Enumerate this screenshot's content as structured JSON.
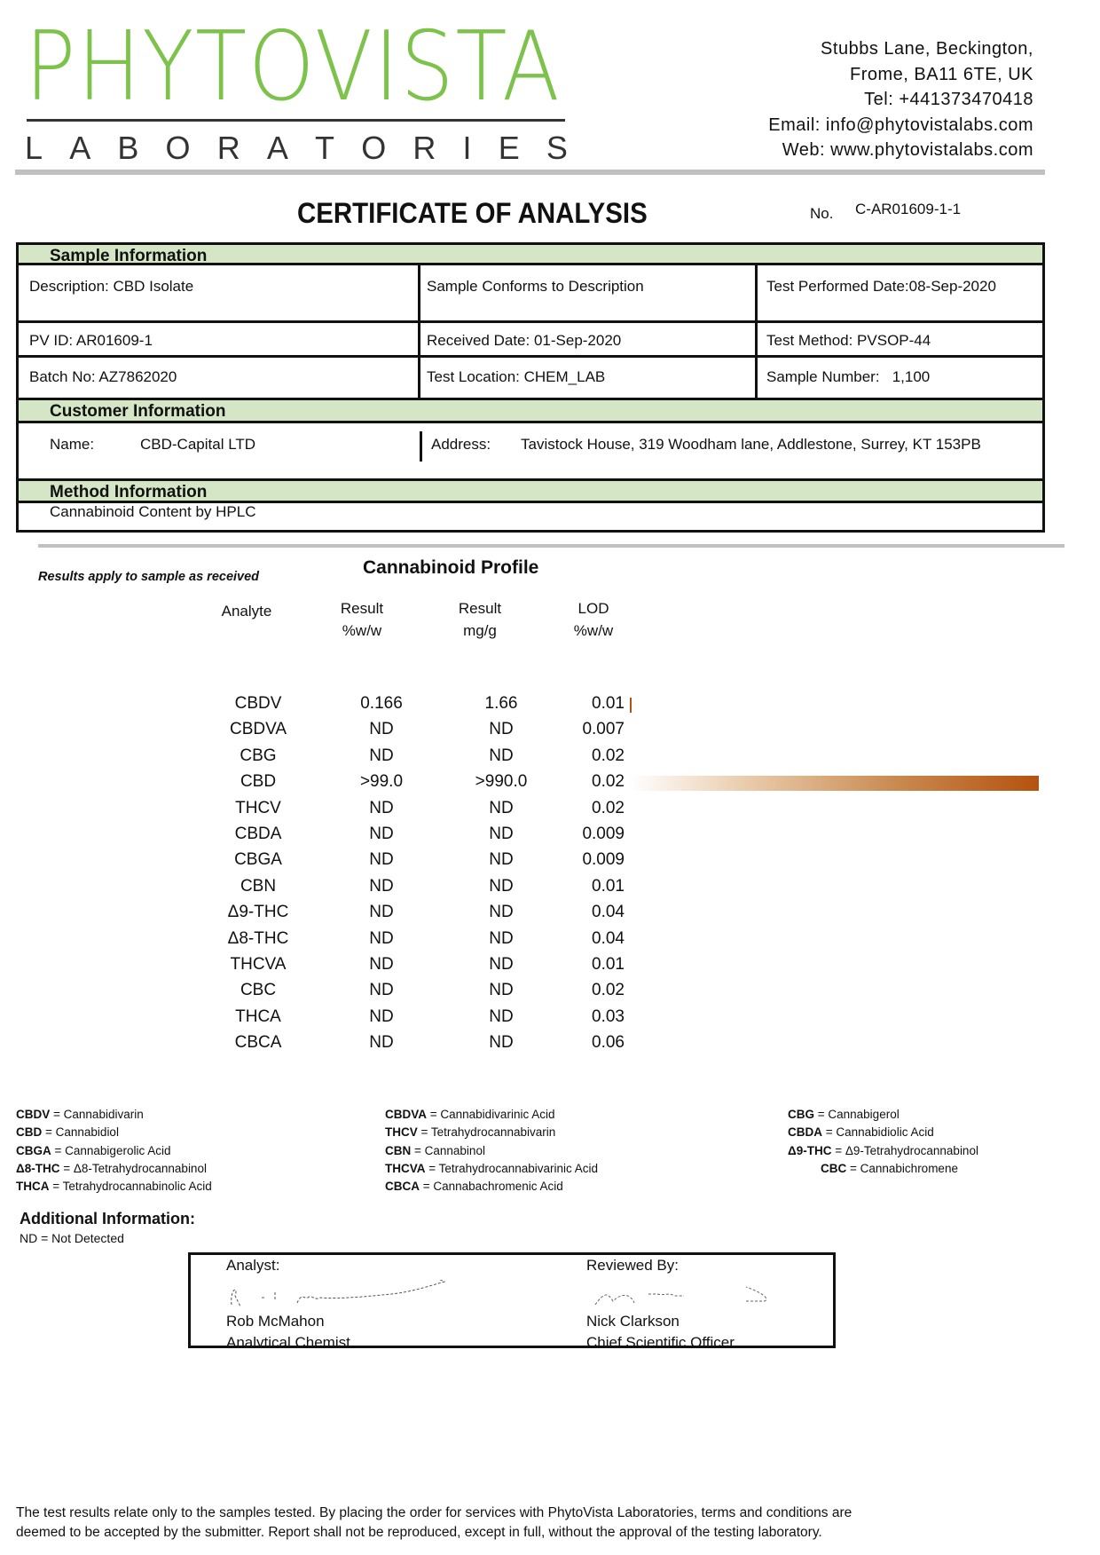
{
  "header": {
    "logo_text": "PHYTOVISTA",
    "logo_sub": "LABORATORIES",
    "brand_color": "#7dc24b",
    "address": [
      "Stubbs Lane, Beckington,",
      "Frome, BA11 6TE, UK",
      "Tel: +441373470418",
      "Email: info@phytovistalabs.com",
      "Web: www.phytovistalabs.com"
    ]
  },
  "title": "CERTIFICATE OF ANALYSIS",
  "cert_no_label": "No.",
  "cert_no": "C-AR01609-1-1",
  "sample": {
    "heading": "Sample Information",
    "description": "Description: CBD Isolate",
    "conforms": "Sample Conforms to Description",
    "test_date": "Test Performed Date:08-Sep-2020",
    "pv_id": "PV ID: AR01609-1",
    "received": "Received Date: 01-Sep-2020",
    "method": "Test Method: PVSOP-44",
    "batch": "Batch No: AZ7862020",
    "location": "Test Location: CHEM_LAB",
    "sample_number": "Sample Number:   1,100"
  },
  "customer": {
    "heading": "Customer Information",
    "name_label": "Name:",
    "name": "CBD-Capital LTD",
    "address_label": "Address:",
    "address": "Tavistock House, 319 Woodham lane, Addlestone, Surrey, KT 153PB"
  },
  "method": {
    "heading": "Method Information",
    "value": "Cannabinoid Content by HPLC"
  },
  "profile": {
    "note": "Results apply to sample as received",
    "title": "Cannabinoid Profile",
    "columns": [
      [
        "Analyte",
        ""
      ],
      [
        "Result",
        "%w/w"
      ],
      [
        "Result",
        "mg/g"
      ],
      [
        "LOD",
        "%w/w"
      ]
    ],
    "bar_color": "#b5520f",
    "rows": [
      {
        "analyte": "CBDV",
        "pct": "0.166",
        "mg": "1.66",
        "lod": "0.01",
        "bar": 0.00166
      },
      {
        "analyte": "CBDVA",
        "pct": "ND",
        "mg": "ND",
        "lod": "0.007",
        "bar": 0
      },
      {
        "analyte": "CBG",
        "pct": "ND",
        "mg": "ND",
        "lod": "0.02",
        "bar": 0
      },
      {
        "analyte": "CBD",
        "pct": ">99.0",
        "mg": ">990.0",
        "lod": "0.02",
        "bar": 0.99
      },
      {
        "analyte": "THCV",
        "pct": "ND",
        "mg": "ND",
        "lod": "0.02",
        "bar": 0
      },
      {
        "analyte": "CBDA",
        "pct": "ND",
        "mg": "ND",
        "lod": "0.009",
        "bar": 0
      },
      {
        "analyte": "CBGA",
        "pct": "ND",
        "mg": "ND",
        "lod": "0.009",
        "bar": 0
      },
      {
        "analyte": "CBN",
        "pct": "ND",
        "mg": "ND",
        "lod": "0.01",
        "bar": 0
      },
      {
        "analyte": "Δ9-THC",
        "pct": "ND",
        "mg": "ND",
        "lod": "0.04",
        "bar": 0
      },
      {
        "analyte": "Δ8-THC",
        "pct": "ND",
        "mg": "ND",
        "lod": "0.04",
        "bar": 0
      },
      {
        "analyte": "THCVA",
        "pct": "ND",
        "mg": "ND",
        "lod": "0.01",
        "bar": 0
      },
      {
        "analyte": "CBC",
        "pct": "ND",
        "mg": "ND",
        "lod": "0.02",
        "bar": 0
      },
      {
        "analyte": "THCA",
        "pct": "ND",
        "mg": "ND",
        "lod": "0.03",
        "bar": 0
      },
      {
        "analyte": "CBCA",
        "pct": "ND",
        "mg": "ND",
        "lod": "0.06",
        "bar": 0
      }
    ]
  },
  "abbreviations": [
    [
      [
        "CBDV",
        "Cannabidivarin"
      ],
      [
        "CBD",
        "Cannabidiol"
      ],
      [
        "CBGA",
        "Cannabigerolic Acid"
      ],
      [
        "Δ8-THC",
        "Δ8-Tetrahydrocannabinol"
      ],
      [
        "THCA",
        "Tetrahydrocannabinolic Acid"
      ]
    ],
    [
      [
        "CBDVA",
        "Cannabidivarinic Acid"
      ],
      [
        "THCV",
        "Tetrahydrocannabivarin"
      ],
      [
        "CBN",
        "Cannabinol"
      ],
      [
        "THCVA",
        "Tetrahydrocannabivarinic Acid"
      ],
      [
        "CBCA",
        "Cannabachromenic Acid"
      ]
    ],
    [
      [
        "CBG",
        "Cannabigerol"
      ],
      [
        "CBDA",
        "Cannabidiolic Acid"
      ],
      [
        "Δ9-THC",
        "Δ9-Tetrahydrocannabinol"
      ],
      [
        "CBC",
        "Cannabichromene"
      ]
    ]
  ],
  "additional": {
    "heading": "Additional Information:",
    "note": "ND = Not Detected"
  },
  "signatures": {
    "analyst_label": "Analyst:",
    "analyst_name": "Rob McMahon",
    "analyst_title": "Analytical Chemist",
    "reviewer_label": "Reviewed By:",
    "reviewer_name": "Nick Clarkson",
    "reviewer_title": "Chief Scientific Officer"
  },
  "footer": [
    "The test results relate only to the samples tested.  By placing the order for services with PhytoVista Laboratories, terms and conditions are",
    "deemed to be accepted by the submitter. Report shall not be reproduced, except in full, without the approval of the testing laboratory."
  ]
}
